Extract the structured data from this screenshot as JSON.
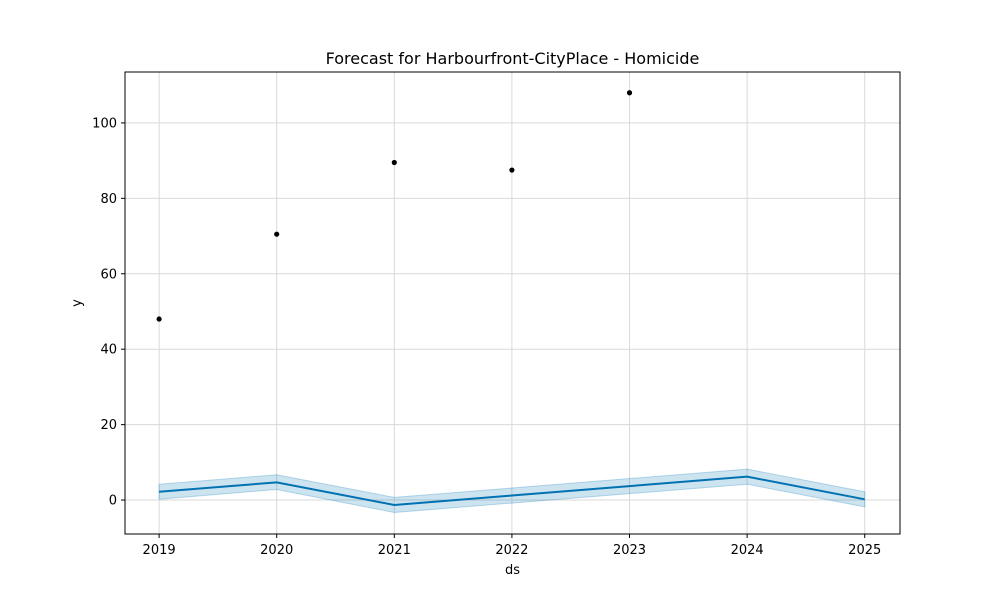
{
  "chart_data": {
    "type": "line",
    "title": "Forecast for Harbourfront-CityPlace - Homicide",
    "xlabel": "ds",
    "ylabel": "y",
    "x_ticks": [
      "2019",
      "2020",
      "2021",
      "2022",
      "2023",
      "2024",
      "2025"
    ],
    "y_ticks": [
      "0",
      "20",
      "40",
      "60",
      "80",
      "100"
    ],
    "xlim": [
      2018.71,
      2025.3
    ],
    "ylim": [
      -9,
      113.5
    ],
    "grid": true,
    "legend": "none",
    "series": [
      {
        "kind": "scatter",
        "color": "#000000",
        "x": [
          2019,
          2020,
          2021,
          2022,
          2023
        ],
        "y": [
          48,
          70.5,
          89.5,
          87.5,
          108
        ]
      },
      {
        "kind": "line",
        "color": "#0072B2",
        "x": [
          2019,
          2020,
          2021,
          2022,
          2023,
          2024,
          2025
        ],
        "y": [
          2.2,
          4.7,
          -1.3,
          1.2,
          3.7,
          6.2,
          0.2
        ],
        "lower": [
          0.2,
          2.8,
          -3.3,
          -0.8,
          1.7,
          4.2,
          -1.8
        ],
        "upper": [
          4.2,
          6.7,
          0.7,
          3.2,
          5.7,
          8.2,
          2.2
        ]
      }
    ],
    "interval_color": "#0072B2"
  }
}
